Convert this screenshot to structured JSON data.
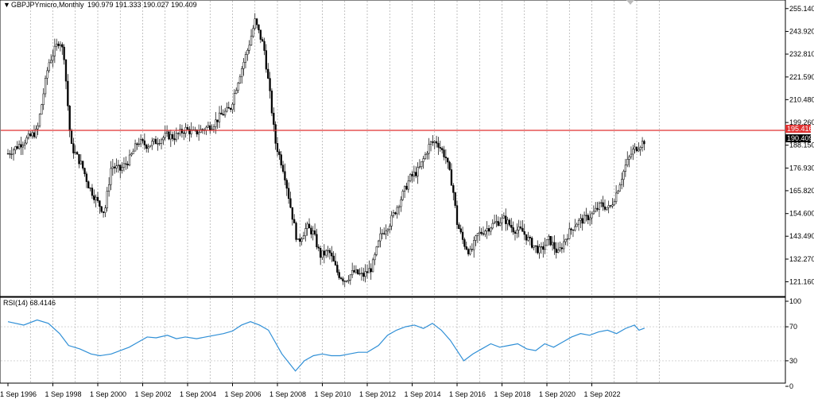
{
  "header": {
    "symbol_label": "GBPJPYmicro,Monthly",
    "ohlc_label": "190.979 191.333 190.027 190.409",
    "rsi_label": "RSI(14) 68.4146"
  },
  "colors": {
    "background": "#ffffff",
    "bull_candle": "#ffffff",
    "bear_candle": "#000000",
    "price_line": "#e03131",
    "rsi_line": "#2f8fd6",
    "grid": "#9a9a9a"
  },
  "chart_data": [
    {
      "type": "candlestick",
      "title": "GBPJPYmicro,Monthly",
      "x": [
        "1 Sep 1996",
        "1 Sep 1998",
        "1 Sep 2000",
        "1 Sep 2002",
        "1 Sep 2004",
        "1 Sep 2006",
        "1 Sep 2008",
        "1 Sep 2010",
        "1 Sep 2012",
        "1 Sep 2014",
        "1 Sep 2016",
        "1 Sep 2018",
        "1 Sep 2020",
        "1 Sep 2022"
      ],
      "y_ticks": [
        "255.140",
        "243.920",
        "232.810",
        "221.590",
        "210.480",
        "199.260",
        "188.150",
        "176.930",
        "165.820",
        "154.600",
        "143.490",
        "132.270",
        "121.160"
      ],
      "ylim": [
        115.5,
        257.0
      ],
      "grid": "vertical dotted",
      "horizontal_line": {
        "value": 195.416,
        "label": "195.416"
      },
      "last_price": {
        "value": 190.409,
        "label": "190.409"
      },
      "series_close": [
        [
          1996,
          184
        ],
        [
          1996.7,
          190
        ],
        [
          1997.3,
          195
        ],
        [
          1997.8,
          228
        ],
        [
          1998.3,
          240
        ],
        [
          1998.5,
          232
        ],
        [
          1998.8,
          188
        ],
        [
          1999.3,
          178
        ],
        [
          1999.6,
          168
        ],
        [
          2000,
          160
        ],
        [
          2000.3,
          155
        ],
        [
          2000.6,
          178
        ],
        [
          2001,
          176
        ],
        [
          2001.4,
          181
        ],
        [
          2001.8,
          190
        ],
        [
          2002.2,
          188
        ],
        [
          2002.6,
          190
        ],
        [
          2003.1,
          193
        ],
        [
          2003.4,
          192
        ],
        [
          2003.9,
          196
        ],
        [
          2004.3,
          194
        ],
        [
          2004.7,
          196
        ],
        [
          2005.1,
          198
        ],
        [
          2005.5,
          203
        ],
        [
          2005.9,
          206
        ],
        [
          2006.3,
          222
        ],
        [
          2006.7,
          236
        ],
        [
          2007,
          249
        ],
        [
          2007.4,
          236
        ],
        [
          2007.7,
          210
        ],
        [
          2007.9,
          190
        ],
        [
          2008.3,
          175
        ],
        [
          2008.6,
          157
        ],
        [
          2008.9,
          140
        ],
        [
          2009.3,
          148
        ],
        [
          2009.6,
          145
        ],
        [
          2009.9,
          134
        ],
        [
          2010.3,
          136
        ],
        [
          2010.7,
          125
        ],
        [
          2011,
          122
        ],
        [
          2011.4,
          126
        ],
        [
          2011.8,
          124
        ],
        [
          2012.2,
          128
        ],
        [
          2012.6,
          144
        ],
        [
          2013,
          150
        ],
        [
          2013.5,
          162
        ],
        [
          2013.9,
          172
        ],
        [
          2014.3,
          176
        ],
        [
          2014.8,
          189
        ],
        [
          2015.1,
          190
        ],
        [
          2015.5,
          182
        ],
        [
          2015.8,
          168
        ],
        [
          2016,
          150
        ],
        [
          2016.3,
          140
        ],
        [
          2016.6,
          135
        ],
        [
          2016.9,
          144
        ],
        [
          2017.3,
          147
        ],
        [
          2017.7,
          150
        ],
        [
          2018.1,
          152
        ],
        [
          2018.5,
          147
        ],
        [
          2018.9,
          146
        ],
        [
          2019.3,
          140
        ],
        [
          2019.7,
          136
        ],
        [
          2020.1,
          142
        ],
        [
          2020.5,
          135
        ],
        [
          2020.9,
          144
        ],
        [
          2021.3,
          150
        ],
        [
          2021.7,
          152
        ],
        [
          2022,
          154
        ],
        [
          2022.4,
          159
        ],
        [
          2022.8,
          157
        ],
        [
          2023.1,
          165
        ],
        [
          2023.5,
          178
        ],
        [
          2023.8,
          185
        ],
        [
          2024.1,
          188
        ],
        [
          2024.35,
          190.409
        ]
      ]
    },
    {
      "type": "line",
      "title": "RSI(14) 68.4146",
      "y_ticks": [
        "100",
        "70",
        "30",
        "0"
      ],
      "ylim": [
        0,
        100
      ],
      "levels": [
        70,
        30
      ],
      "series": [
        {
          "points": [
            [
              1996,
              76
            ],
            [
              1996.7,
              72
            ],
            [
              1997.3,
              78
            ],
            [
              1997.8,
              74
            ],
            [
              1998.3,
              62
            ],
            [
              1998.7,
              48
            ],
            [
              1999.2,
              44
            ],
            [
              1999.7,
              38
            ],
            [
              2000.1,
              36
            ],
            [
              2000.6,
              38
            ],
            [
              2001,
              42
            ],
            [
              2001.4,
              46
            ],
            [
              2001.8,
              52
            ],
            [
              2002.2,
              58
            ],
            [
              2002.6,
              57
            ],
            [
              2003.1,
              60
            ],
            [
              2003.5,
              56
            ],
            [
              2003.9,
              58
            ],
            [
              2004.4,
              56
            ],
            [
              2004.8,
              58
            ],
            [
              2005.2,
              60
            ],
            [
              2005.6,
              62
            ],
            [
              2006,
              65
            ],
            [
              2006.4,
              72
            ],
            [
              2006.8,
              76
            ],
            [
              2007.2,
              72
            ],
            [
              2007.6,
              66
            ],
            [
              2007.9,
              52
            ],
            [
              2008.2,
              38
            ],
            [
              2008.5,
              28
            ],
            [
              2008.8,
              18
            ],
            [
              2009.2,
              30
            ],
            [
              2009.6,
              36
            ],
            [
              2010,
              38
            ],
            [
              2010.4,
              36
            ],
            [
              2010.8,
              36
            ],
            [
              2011.2,
              38
            ],
            [
              2011.6,
              40
            ],
            [
              2012,
              40
            ],
            [
              2012.5,
              48
            ],
            [
              2012.9,
              60
            ],
            [
              2013.3,
              66
            ],
            [
              2013.7,
              70
            ],
            [
              2014.1,
              72
            ],
            [
              2014.5,
              68
            ],
            [
              2014.9,
              74
            ],
            [
              2015.3,
              66
            ],
            [
              2015.7,
              54
            ],
            [
              2016,
              42
            ],
            [
              2016.3,
              30
            ],
            [
              2016.7,
              38
            ],
            [
              2017.1,
              44
            ],
            [
              2017.5,
              50
            ],
            [
              2017.9,
              46
            ],
            [
              2018.3,
              48
            ],
            [
              2018.7,
              50
            ],
            [
              2019.1,
              44
            ],
            [
              2019.5,
              42
            ],
            [
              2019.9,
              50
            ],
            [
              2020.3,
              46
            ],
            [
              2020.7,
              52
            ],
            [
              2021.1,
              58
            ],
            [
              2021.5,
              62
            ],
            [
              2021.9,
              60
            ],
            [
              2022.3,
              64
            ],
            [
              2022.7,
              66
            ],
            [
              2023.1,
              62
            ],
            [
              2023.5,
              68
            ],
            [
              2023.9,
              72
            ],
            [
              2024.1,
              66
            ],
            [
              2024.35,
              68.4146
            ]
          ]
        }
      ]
    }
  ]
}
